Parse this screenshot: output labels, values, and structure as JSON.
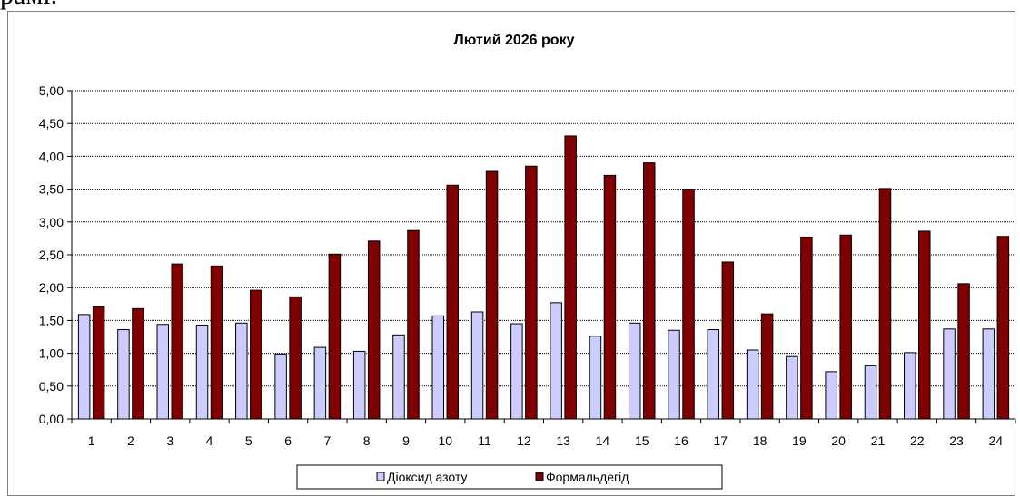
{
  "page": {
    "top_fragment": "рамі."
  },
  "chart_data": {
    "type": "bar",
    "title": "Лютий 2026 року",
    "xlabel": "",
    "ylabel": "",
    "ylim": [
      0,
      5
    ],
    "ytick_labels": [
      "0,00",
      "0,50",
      "1,00",
      "1,50",
      "2,00",
      "2,50",
      "3,00",
      "3,50",
      "4,00",
      "4,50",
      "5,00"
    ],
    "grid": true,
    "legend_position": "bottom",
    "categories": [
      "1",
      "2",
      "3",
      "4",
      "5",
      "6",
      "7",
      "8",
      "9",
      "10",
      "11",
      "12",
      "13",
      "14",
      "15",
      "16",
      "17",
      "18",
      "19",
      "20",
      "21",
      "22",
      "23",
      "24"
    ],
    "series": [
      {
        "name": "Діоксид азоту",
        "color": "#ccccff",
        "values": [
          1.59,
          1.36,
          1.44,
          1.43,
          1.46,
          0.99,
          1.09,
          1.03,
          1.28,
          1.57,
          1.63,
          1.45,
          1.77,
          1.26,
          1.46,
          1.35,
          1.36,
          1.05,
          0.95,
          0.72,
          0.81,
          1.01,
          1.37,
          1.37
        ]
      },
      {
        "name": "Формальдегід",
        "color": "#800000",
        "values": [
          1.71,
          1.68,
          2.36,
          2.33,
          1.96,
          1.86,
          2.51,
          2.71,
          2.87,
          3.56,
          3.77,
          3.85,
          4.31,
          3.71,
          3.9,
          3.5,
          2.39,
          1.6,
          2.77,
          2.8,
          3.51,
          2.86,
          2.06,
          2.78
        ]
      }
    ]
  }
}
